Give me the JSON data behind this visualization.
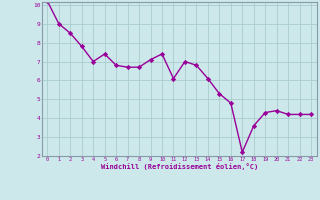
{
  "x": [
    0,
    1,
    2,
    3,
    4,
    5,
    6,
    7,
    8,
    9,
    10,
    11,
    12,
    13,
    14,
    15,
    16,
    17,
    18,
    19,
    20,
    21,
    22,
    23
  ],
  "y": [
    10.2,
    9.0,
    8.5,
    7.8,
    7.0,
    7.4,
    6.8,
    6.7,
    6.7,
    7.1,
    7.4,
    6.1,
    7.0,
    6.8,
    6.1,
    5.3,
    4.8,
    2.2,
    3.6,
    4.3,
    4.4,
    4.2,
    4.2,
    4.2
  ],
  "line_color": "#990099",
  "marker": "D",
  "marker_size": 2.2,
  "bg_color": "#cce8ea",
  "grid_color": "#aacccc",
  "spine_color": "#8899aa",
  "xlabel": "Windchill (Refroidissement éolien,°C)",
  "xlabel_color": "#990099",
  "tick_color": "#990099",
  "ylim": [
    2,
    10
  ],
  "xlim": [
    -0.5,
    23.5
  ],
  "yticks": [
    2,
    3,
    4,
    5,
    6,
    7,
    8,
    9,
    10
  ],
  "xticks": [
    0,
    1,
    2,
    3,
    4,
    5,
    6,
    7,
    8,
    9,
    10,
    11,
    12,
    13,
    14,
    15,
    16,
    17,
    18,
    19,
    20,
    21,
    22,
    23
  ],
  "linewidth": 1.0
}
